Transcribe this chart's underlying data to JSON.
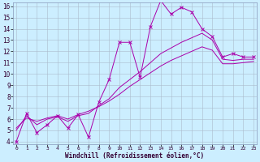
{
  "xlabel": "Windchill (Refroidissement éolien,°C)",
  "background_color": "#cceeff",
  "line_color": "#aa00aa",
  "grid_color": "#aabbcc",
  "xmin": 0,
  "xmax": 23,
  "ymin": 4,
  "ymax": 16,
  "line1_x": [
    0,
    1,
    2,
    3,
    4,
    5,
    6,
    7,
    8,
    9,
    10,
    11,
    12,
    13,
    14,
    15,
    16,
    17,
    18,
    19,
    20,
    21,
    22,
    23
  ],
  "line1_y": [
    4.0,
    6.5,
    4.8,
    5.5,
    6.3,
    5.2,
    6.4,
    4.4,
    7.5,
    9.5,
    12.8,
    12.8,
    9.7,
    14.2,
    16.5,
    15.3,
    15.9,
    15.5,
    14.0,
    13.3,
    11.5,
    11.8,
    11.5,
    11.5
  ],
  "line2_x": [
    0,
    1,
    2,
    3,
    4,
    5,
    6,
    7,
    8,
    9,
    10,
    11,
    12,
    13,
    14,
    15,
    16,
    17,
    18,
    19,
    20,
    21,
    22,
    23
  ],
  "line2_y": [
    5.0,
    6.3,
    5.5,
    6.0,
    6.2,
    5.8,
    6.3,
    6.5,
    7.2,
    7.8,
    8.8,
    9.5,
    10.2,
    11.0,
    11.8,
    12.3,
    12.8,
    13.2,
    13.6,
    13.0,
    11.3,
    11.2,
    11.3,
    11.3
  ],
  "line3_x": [
    0,
    1,
    2,
    3,
    4,
    5,
    6,
    7,
    8,
    9,
    10,
    11,
    12,
    13,
    14,
    15,
    16,
    17,
    18,
    19,
    20,
    21,
    22,
    23
  ],
  "line3_y": [
    5.2,
    6.1,
    5.8,
    6.1,
    6.3,
    6.0,
    6.4,
    6.7,
    7.1,
    7.6,
    8.2,
    8.9,
    9.5,
    10.1,
    10.7,
    11.2,
    11.6,
    12.0,
    12.4,
    12.1,
    10.9,
    10.9,
    11.0,
    11.1
  ],
  "xlabel_fontsize": 5.5,
  "ytick_fontsize": 5.5,
  "xtick_fontsize": 4.5
}
